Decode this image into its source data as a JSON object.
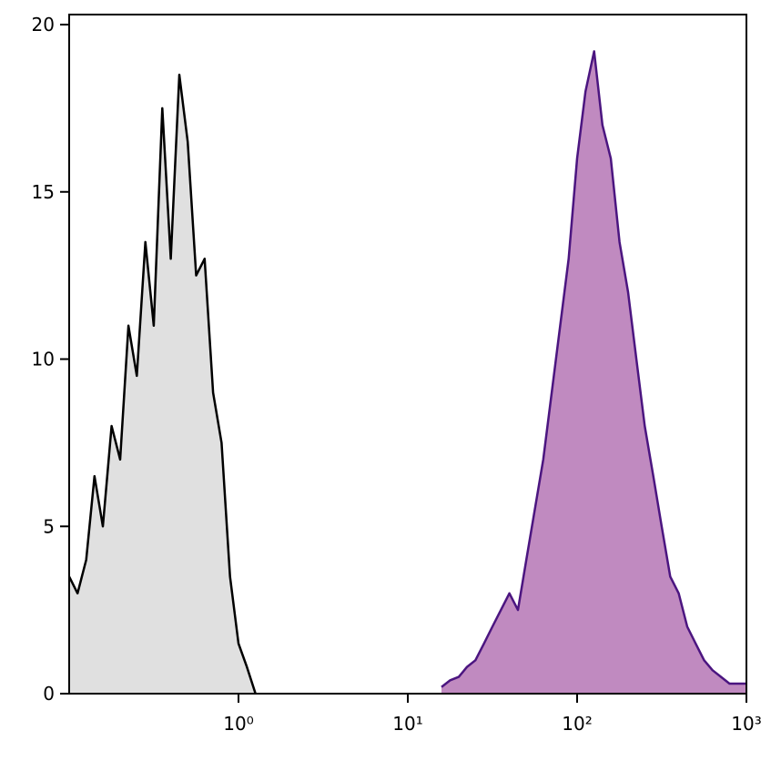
{
  "chart_data": {
    "type": "histogram-overlay",
    "xscale": "log",
    "xlim": [
      0.1,
      1000
    ],
    "ylim": [
      0,
      20.3
    ],
    "xticks": [
      {
        "value": 1,
        "label": "10⁰"
      },
      {
        "value": 10,
        "label": "10¹"
      },
      {
        "value": 100,
        "label": "10²"
      },
      {
        "value": 1000,
        "label": "10³"
      }
    ],
    "yticks": [
      0,
      5,
      10,
      15,
      20
    ],
    "series": [
      {
        "color": "#000000",
        "fill_color": "#e0e0e0",
        "x": [
          0.1,
          0.112,
          0.126,
          0.141,
          0.158,
          0.178,
          0.2,
          0.224,
          0.251,
          0.282,
          0.316,
          0.355,
          0.398,
          0.447,
          0.501,
          0.562,
          0.631,
          0.708,
          0.794,
          0.891,
          1.0,
          1.12,
          1.26
        ],
        "values": [
          3.5,
          3.0,
          4.0,
          6.5,
          5.0,
          8.0,
          7.0,
          11.0,
          9.5,
          13.5,
          11.0,
          17.5,
          13.0,
          18.5,
          16.5,
          12.5,
          13.0,
          9.0,
          7.5,
          3.5,
          1.5,
          0.8,
          0
        ]
      },
      {
        "color": "#4b1580",
        "fill_color": "#c08ac0",
        "x": [
          15.8,
          17.8,
          20,
          22.4,
          25.1,
          28.2,
          31.6,
          35.5,
          39.8,
          44.7,
          50.1,
          56.2,
          63.1,
          70.8,
          79.4,
          89.1,
          100,
          112,
          126,
          141,
          158,
          178,
          200,
          224,
          251,
          282,
          316,
          355,
          398,
          447,
          501,
          562,
          631,
          708,
          794,
          891,
          1000
        ],
        "values": [
          0.2,
          0.4,
          0.5,
          0.8,
          1.0,
          1.5,
          2.0,
          2.5,
          3.0,
          2.5,
          4.0,
          5.5,
          7.0,
          9.0,
          11.0,
          13.0,
          16.0,
          18.0,
          19.2,
          17.0,
          16.0,
          13.5,
          12.0,
          10.0,
          8.0,
          6.5,
          5.0,
          3.5,
          3.0,
          2.0,
          1.5,
          1.0,
          0.7,
          0.5,
          0.3,
          0.3,
          0.3
        ]
      }
    ]
  }
}
